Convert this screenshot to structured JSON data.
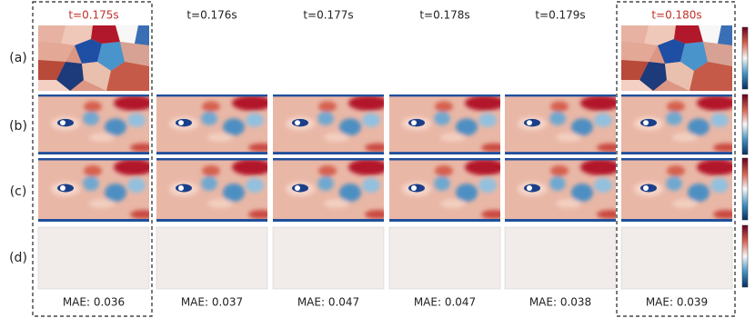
{
  "columns": [
    {
      "title": "t=0.175s",
      "mae": "MAE: 0.036"
    },
    {
      "title": "t=0.176s",
      "mae": "MAE: 0.037"
    },
    {
      "title": "t=0.177s",
      "mae": "MAE: 0.047"
    },
    {
      "title": "t=0.178s",
      "mae": "MAE: 0.047"
    },
    {
      "title": "t=0.179s",
      "mae": "MAE: 0.038"
    },
    {
      "title": "t=0.180s",
      "mae": "MAE: 0.039"
    }
  ],
  "row_labels": [
    "(a)",
    "(b)",
    "(c)",
    "(d)"
  ]
}
